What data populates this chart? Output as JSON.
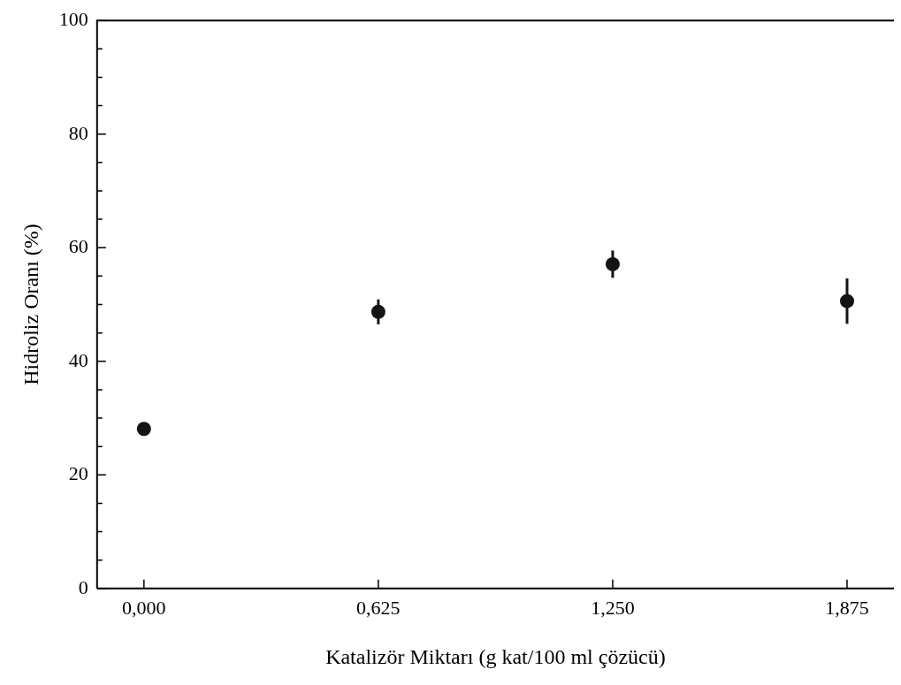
{
  "chart_data": {
    "type": "scatter",
    "xlabel": "Katalizör Miktarı (g kat/100 ml çözücü)",
    "ylabel": "Hidroliz Oranı (%)",
    "x": [
      0,
      0.625,
      1.25,
      1.875
    ],
    "series": [
      {
        "color": "#141414",
        "values": [
          28.1,
          48.7,
          57.1,
          50.6
        ],
        "errors": [
          null,
          2.2,
          2.4,
          4.0
        ]
      }
    ],
    "xlim": [
      -0.125,
      2.0
    ],
    "ylim": [
      0,
      100
    ],
    "xticks": [
      {
        "value": 0,
        "label": "0,000"
      },
      {
        "value": 0.625,
        "label": "0,625"
      },
      {
        "value": 1.25,
        "label": "1,250"
      },
      {
        "value": 1.875,
        "label": "1,875"
      }
    ],
    "yticks": [
      0,
      {
        "value": 5,
        "label": null
      },
      {
        "value": 10,
        "label": null
      },
      {
        "value": 15,
        "label": null
      },
      20,
      {
        "value": 25,
        "label": null
      },
      {
        "value": 30,
        "label": null
      },
      {
        "value": 35,
        "label": null
      },
      40,
      {
        "value": 45,
        "label": null
      },
      {
        "value": 50,
        "label": null
      },
      {
        "value": 55,
        "label": null
      },
      60,
      {
        "value": 65,
        "label": null
      },
      {
        "value": 70,
        "label": null
      },
      {
        "value": 75,
        "label": null
      },
      80,
      {
        "value": 85,
        "label": null
      },
      {
        "value": 90,
        "label": null
      },
      {
        "value": 95,
        "label": null
      },
      100
    ],
    "grid": false,
    "legend": false,
    "marker": "circle"
  }
}
